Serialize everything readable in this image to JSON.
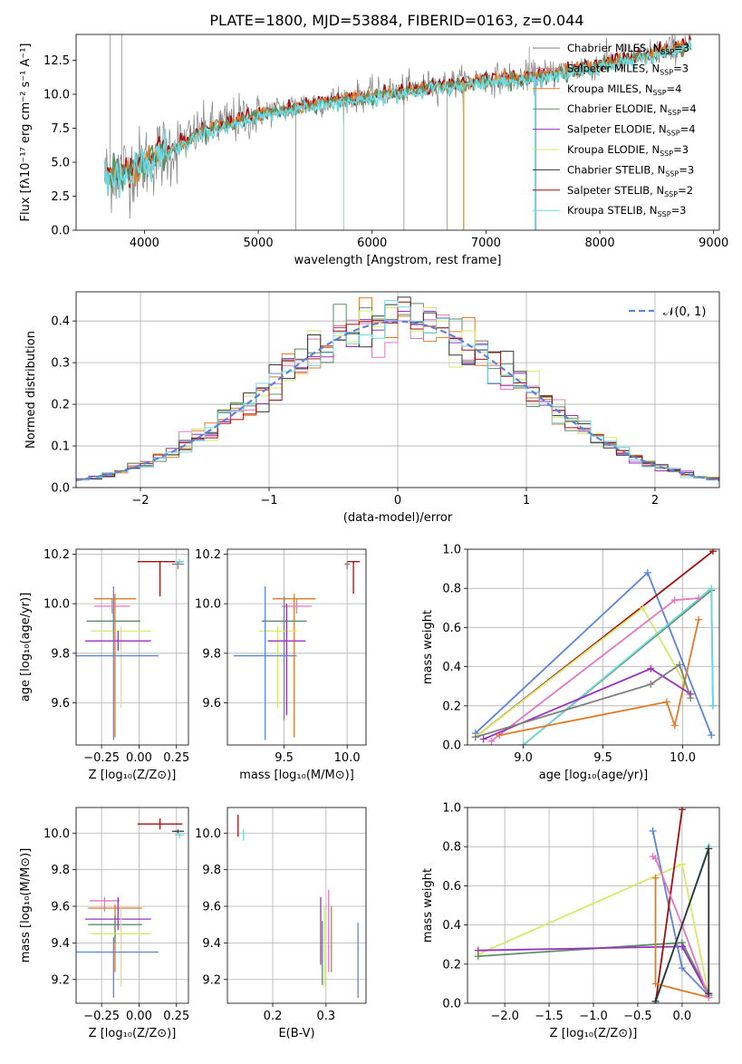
{
  "figure_title": "PLATE=1800, MJD=53884, FIBERID=0163, z=0.044",
  "colors": {
    "gray": "#808080",
    "pink": "#e377c2",
    "orange": "#e07b28",
    "green": "#5b8f66",
    "purple": "#9b30c0",
    "yellow": "#d4ea6a",
    "black": "#333333",
    "darkred": "#a01010",
    "cyan": "#70d8de",
    "blue": "#5b84d9"
  },
  "chart_data": [
    {
      "id": "spectrum",
      "type": "line",
      "xlabel": "wavelength [Angstrom, rest frame]",
      "ylabel": "Flux [fλ10⁻¹⁷ erg cm⁻² s⁻¹ A⁻¹]",
      "xlim": [
        3400,
        9050
      ],
      "ylim": [
        0,
        14.4
      ],
      "xticks": [
        4000,
        5000,
        6000,
        7000,
        8000,
        9000
      ],
      "yticks": [
        0.0,
        2.5,
        5.0,
        7.5,
        10.0,
        12.5
      ],
      "grid": false,
      "legend_position": "top-right",
      "legend": [
        {
          "label": "Chabrier MILES, N",
          "sub": "SSP",
          "tail": "=3",
          "color": "gray"
        },
        {
          "label": "Salpeter MILES, N",
          "sub": "SSP",
          "tail": "=3",
          "color": "pink"
        },
        {
          "label": "Kroupa MILES, N",
          "sub": "SSP",
          "tail": "=4",
          "color": "orange"
        },
        {
          "label": "Chabrier ELODIE, N",
          "sub": "SSP",
          "tail": "=4",
          "color": "green"
        },
        {
          "label": "Salpeter ELODIE, N",
          "sub": "SSP",
          "tail": "=4",
          "color": "purple"
        },
        {
          "label": "Kroupa ELODIE, N",
          "sub": "SSP",
          "tail": "=3",
          "color": "yellow"
        },
        {
          "label": "Chabrier STELIB, N",
          "sub": "SSP",
          "tail": "=3",
          "color": "black"
        },
        {
          "label": "Salpeter STELIB, N",
          "sub": "SSP",
          "tail": "=2",
          "color": "darkred"
        },
        {
          "label": "Kroupa STELIB, N",
          "sub": "SSP",
          "tail": "=3",
          "color": "cyan"
        }
      ],
      "continuum": {
        "x": [
          3650,
          3900,
          4100,
          4500,
          5000,
          5500,
          6000,
          6500,
          7000,
          7400,
          7800,
          8200,
          8500,
          8800
        ],
        "y": [
          4.0,
          4.6,
          5.4,
          7.3,
          8.6,
          9.4,
          10.0,
          10.6,
          11.1,
          11.3,
          11.9,
          12.6,
          13.1,
          13.8
        ]
      }
    },
    {
      "id": "residuals",
      "type": "histogram",
      "xlabel": "(data-model)/error",
      "ylabel": "Normed distribution",
      "xlim": [
        -2.5,
        2.5
      ],
      "ylim": [
        0,
        0.47
      ],
      "xticks": [
        -2,
        -1,
        0,
        1,
        2
      ],
      "yticks": [
        0.0,
        0.1,
        0.2,
        0.3,
        0.4
      ],
      "grid": true,
      "legend_position": "top-right",
      "legend_label": "𝒩(0, 1)",
      "bin_width": 0.1,
      "series_colors": [
        "pink",
        "orange",
        "green",
        "purple",
        "yellow",
        "black",
        "darkred",
        "cyan"
      ]
    },
    {
      "id": "age-Z",
      "type": "errorbar",
      "xlabel": "Z [log₁₀(Z/Z⊙)]",
      "ylabel": "age  [log₁₀(age/yr)]",
      "xlim": [
        -0.42,
        0.33
      ],
      "ylim": [
        9.43,
        10.22
      ],
      "xticks": [
        -0.25,
        0.0,
        0.25
      ],
      "xticklabels": [
        "−0.25",
        "0.00",
        "0.25"
      ],
      "yticks": [
        9.6,
        9.8,
        10.0,
        10.2
      ],
      "points": [
        {
          "color": "orange",
          "x": -0.16,
          "y": 10.02,
          "xerr": 0.14,
          "yerr": [
            0.56,
            0.02
          ]
        },
        {
          "color": "pink",
          "x": -0.18,
          "y": 9.99,
          "xerr": 0.12,
          "yerr": [
            0.03,
            0.03
          ]
        },
        {
          "color": "green",
          "x": -0.17,
          "y": 9.93,
          "xerr": 0.18,
          "yerr": [
            0.05,
            0.05
          ]
        },
        {
          "color": "yellow",
          "x": -0.12,
          "y": 9.89,
          "xerr": 0.2,
          "yerr": [
            0.31,
            0.02
          ]
        },
        {
          "color": "purple",
          "x": -0.14,
          "y": 9.85,
          "xerr": 0.22,
          "yerr": [
            0.04,
            0.04
          ]
        },
        {
          "color": "blue",
          "x": -0.17,
          "y": 9.79,
          "xerr": 0.3,
          "yerr": [
            0.34,
            0.28
          ]
        },
        {
          "color": "darkred",
          "x": 0.14,
          "y": 10.17,
          "xerr": 0.15,
          "yerr": [
            0.14,
            0.0
          ]
        },
        {
          "color": "gray",
          "x": 0.26,
          "y": 10.16,
          "xerr": 0.04,
          "yerr": [
            0.02,
            0.01
          ]
        },
        {
          "color": "cyan",
          "x": 0.27,
          "y": 10.17,
          "xerr": 0.03,
          "yerr": [
            0.01,
            0.01
          ]
        }
      ]
    },
    {
      "id": "age-mass",
      "type": "errorbar",
      "xlabel": "mass [log₁₀(M/M⊙)]",
      "ylabel": "",
      "xlim": [
        9.05,
        10.15
      ],
      "ylim": [
        9.43,
        10.22
      ],
      "xticks": [
        9.5,
        10.0
      ],
      "yticks": [
        9.6,
        9.8,
        10.0,
        10.2
      ],
      "points": [
        {
          "color": "orange",
          "x": 9.58,
          "y": 10.02,
          "xerr": 0.17,
          "yerr": [
            0.56,
            0.02
          ]
        },
        {
          "color": "pink",
          "x": 9.6,
          "y": 9.99,
          "xerr": 0.12,
          "yerr": [
            0.03,
            0.03
          ]
        },
        {
          "color": "green",
          "x": 9.5,
          "y": 9.93,
          "xerr": 0.18,
          "yerr": [
            0.4,
            0.1
          ]
        },
        {
          "color": "yellow",
          "x": 9.45,
          "y": 9.89,
          "xerr": 0.15,
          "yerr": [
            0.31,
            0.02
          ]
        },
        {
          "color": "purple",
          "x": 9.52,
          "y": 9.85,
          "xerr": 0.15,
          "yerr": [
            0.3,
            0.15
          ]
        },
        {
          "color": "blue",
          "x": 9.35,
          "y": 9.79,
          "xerr": 0.25,
          "yerr": [
            0.34,
            0.28
          ]
        },
        {
          "color": "darkred",
          "x": 10.05,
          "y": 10.17,
          "xerr": 0.05,
          "yerr": [
            0.13,
            0.0
          ]
        },
        {
          "color": "gray",
          "x": 10.0,
          "y": 10.16,
          "xerr": 0.02,
          "yerr": [
            0.02,
            0.01
          ]
        }
      ]
    },
    {
      "id": "weight-age",
      "type": "line",
      "xlabel": "age  [log₁₀(age/yr)]",
      "ylabel": "mass weight",
      "xlim": [
        8.65,
        10.23
      ],
      "ylim": [
        0,
        1.0
      ],
      "xticks": [
        9.0,
        9.5,
        10.0
      ],
      "yticks": [
        0.0,
        0.2,
        0.4,
        0.6,
        0.8,
        1.0
      ],
      "grid": true,
      "series": [
        {
          "color": "blue",
          "x": [
            8.7,
            9.78,
            10.18
          ],
          "y": [
            0.06,
            0.88,
            0.05
          ]
        },
        {
          "color": "darkred",
          "x": [
            8.7,
            10.19
          ],
          "y": [
            0.04,
            0.99
          ]
        },
        {
          "color": "yellow",
          "x": [
            8.7,
            9.75,
            10.05
          ],
          "y": [
            0.04,
            0.7,
            0.26
          ]
        },
        {
          "color": "green",
          "x": [
            9.0,
            10.18,
            10.19
          ],
          "y": [
            0.0,
            0.79,
            0.2
          ]
        },
        {
          "color": "cyan",
          "x": [
            9.0,
            10.18,
            10.19
          ],
          "y": [
            0.0,
            0.8,
            0.2
          ]
        },
        {
          "color": "pink",
          "x": [
            8.8,
            9.95,
            10.1
          ],
          "y": [
            0.02,
            0.74,
            0.75
          ]
        },
        {
          "color": "orange",
          "x": [
            8.85,
            9.9,
            9.95,
            10.1
          ],
          "y": [
            0.05,
            0.22,
            0.1,
            0.64
          ]
        },
        {
          "color": "purple",
          "x": [
            8.75,
            9.8,
            10.05
          ],
          "y": [
            0.03,
            0.39,
            0.26
          ]
        },
        {
          "color": "gray",
          "x": [
            8.7,
            9.8,
            9.98,
            10.05
          ],
          "y": [
            0.04,
            0.31,
            0.41,
            0.24
          ]
        }
      ]
    },
    {
      "id": "mass-Z",
      "type": "errorbar",
      "xlabel": "Z [log₁₀(Z/Z⊙)]",
      "ylabel": "mass [log₁₀(M/M⊙)]",
      "xlim": [
        -0.42,
        0.33
      ],
      "ylim": [
        9.07,
        10.14
      ],
      "xticks": [
        -0.25,
        0.0,
        0.25
      ],
      "xticklabels": [
        "−0.25",
        "0.00",
        "0.25"
      ],
      "yticks": [
        9.2,
        9.4,
        9.6,
        9.8,
        10.0
      ],
      "points": [
        {
          "color": "pink",
          "x": -0.23,
          "y": 9.63,
          "xerr": 0.1,
          "yerr": [
            0.06,
            0.02
          ]
        },
        {
          "color": "orange",
          "x": -0.16,
          "y": 9.59,
          "xerr": 0.18,
          "yerr": [
            0.35,
            0.02
          ]
        },
        {
          "color": "green",
          "x": -0.16,
          "y": 9.5,
          "xerr": 0.18,
          "yerr": [
            0.1,
            0.05
          ]
        },
        {
          "color": "purple",
          "x": -0.14,
          "y": 9.53,
          "xerr": 0.22,
          "yerr": [
            0.06,
            0.12
          ]
        },
        {
          "color": "yellow",
          "x": -0.12,
          "y": 9.45,
          "xerr": 0.2,
          "yerr": [
            0.29,
            0.15
          ]
        },
        {
          "color": "blue",
          "x": -0.17,
          "y": 9.35,
          "xerr": 0.3,
          "yerr": [
            0.25,
            0.08
          ]
        },
        {
          "color": "darkred",
          "x": 0.14,
          "y": 10.05,
          "xerr": 0.15,
          "yerr": [
            0.03,
            0.03
          ]
        },
        {
          "color": "black",
          "x": 0.26,
          "y": 10.01,
          "xerr": 0.04,
          "yerr": [
            0.01,
            0.01
          ]
        },
        {
          "color": "cyan",
          "x": 0.27,
          "y": 9.99,
          "xerr": 0.03,
          "yerr": [
            0.02,
            0.02
          ]
        }
      ]
    },
    {
      "id": "mass-ebv",
      "type": "errorbar",
      "xlabel": "E(B-V)",
      "ylabel": "",
      "xlim": [
        0.115,
        0.375
      ],
      "ylim": [
        9.07,
        10.14
      ],
      "xticks": [
        0.2,
        0.3
      ],
      "yticks": [
        9.2,
        9.4,
        9.6,
        9.8,
        10.0
      ],
      "points": [
        {
          "color": "darkred",
          "x": 0.135,
          "y": 10.05,
          "xerr": 0,
          "yerr": [
            0.07,
            0.05
          ]
        },
        {
          "color": "cyan",
          "x": 0.145,
          "y": 9.99,
          "xerr": 0,
          "yerr": [
            0.03,
            0.03
          ]
        },
        {
          "color": "purple",
          "x": 0.29,
          "y": 9.5,
          "xerr": 0,
          "yerr": [
            0.22,
            0.15
          ]
        },
        {
          "color": "green",
          "x": 0.293,
          "y": 9.42,
          "xerr": 0,
          "yerr": [
            0.25,
            0.1
          ]
        },
        {
          "color": "yellow",
          "x": 0.297,
          "y": 9.45,
          "xerr": 0,
          "yerr": [
            0.29,
            0.15
          ]
        },
        {
          "color": "pink",
          "x": 0.305,
          "y": 9.55,
          "xerr": 0,
          "yerr": [
            0.31,
            0.14
          ]
        },
        {
          "color": "orange",
          "x": 0.31,
          "y": 9.45,
          "xerr": 0,
          "yerr": [
            0.21,
            0.15
          ]
        },
        {
          "color": "blue",
          "x": 0.36,
          "y": 9.3,
          "xerr": 0,
          "yerr": [
            0.2,
            0.21
          ]
        }
      ]
    },
    {
      "id": "weight-Z",
      "type": "line",
      "xlabel": "Z [log₁₀(Z/Z⊙)]",
      "ylabel": "mass weight",
      "xlim": [
        -2.42,
        0.42
      ],
      "ylim": [
        0,
        1.0
      ],
      "xticks": [
        -2.0,
        -1.5,
        -1.0,
        -0.5,
        0.0
      ],
      "xticklabels": [
        "−2.0",
        "−1.5",
        "−1.0",
        "−0.5",
        "0.0"
      ],
      "yticks": [
        0.0,
        0.2,
        0.4,
        0.6,
        0.8,
        1.0
      ],
      "grid": true,
      "series": [
        {
          "color": "yellow",
          "x": [
            -2.3,
            0.0,
            0.3
          ],
          "y": [
            0.25,
            0.71,
            0.04
          ]
        },
        {
          "color": "green",
          "x": [
            -2.3,
            0.0,
            0.3
          ],
          "y": [
            0.24,
            0.31,
            0.05
          ]
        },
        {
          "color": "purple",
          "x": [
            -2.3,
            0.0,
            0.3
          ],
          "y": [
            0.27,
            0.29,
            0.04
          ]
        },
        {
          "color": "blue",
          "x": [
            -0.33,
            0.0,
            0.3
          ],
          "y": [
            0.88,
            0.18,
            0.04
          ]
        },
        {
          "color": "darkred",
          "x": [
            -0.3,
            0.0
          ],
          "y": [
            0.0,
            0.99
          ]
        },
        {
          "color": "orange",
          "x": [
            -0.3,
            -0.3,
            0.3
          ],
          "y": [
            0.64,
            0.1,
            0.03
          ]
        },
        {
          "color": "pink",
          "x": [
            -0.33,
            -0.3,
            0.0,
            0.3
          ],
          "y": [
            0.75,
            0.74,
            0.4,
            0.03
          ]
        },
        {
          "color": "cyan",
          "x": [
            -0.3,
            0.3
          ],
          "y": [
            0.0,
            0.8
          ]
        },
        {
          "color": "black",
          "x": [
            -0.3,
            0.3,
            0.3
          ],
          "y": [
            0.01,
            0.79,
            0.05
          ]
        }
      ]
    }
  ]
}
